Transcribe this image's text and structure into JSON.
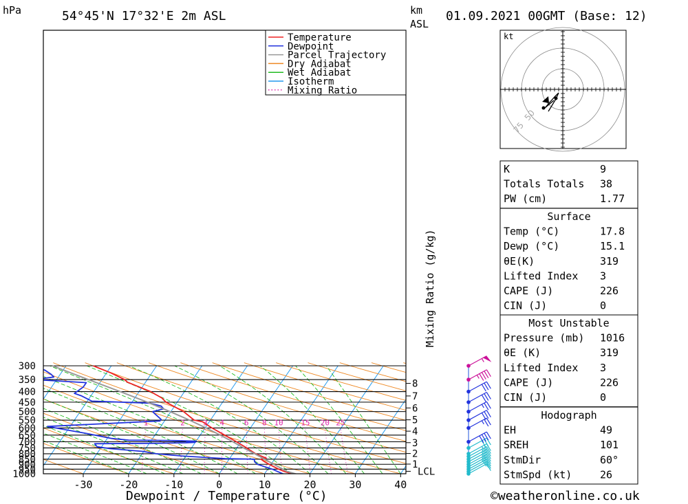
{
  "header": {
    "location": "54°45'N 17°32'E 2m ASL",
    "pressure_unit": "hPa",
    "km_unit": "km",
    "asl_label": "ASL",
    "datetime": "01.09.2021 00GMT (Base: 12)"
  },
  "footer": {
    "x_axis_title": "Dewpoint / Temperature (°C)",
    "copyright": "©weatheronline.co.uk"
  },
  "chart_data": {
    "type": "line",
    "title": "54°45'N 17°32'E 2m ASL",
    "xlabel": "Dewpoint / Temperature (°C)",
    "ylabel": "hPa",
    "mixing_ratio_label": "Mixing Ratio (g/kg)",
    "xlim": [
      -40,
      40
    ],
    "x_ticks": [
      -30,
      -20,
      -10,
      0,
      10,
      20,
      30,
      40
    ],
    "pressure_levels": [
      300,
      350,
      400,
      450,
      500,
      550,
      600,
      650,
      700,
      750,
      800,
      850,
      900,
      950,
      1000
    ],
    "km_ticks": [
      {
        "label": "8",
        "p": 365
      },
      {
        "label": "7",
        "p": 420
      },
      {
        "label": "6",
        "p": 480
      },
      {
        "label": "5",
        "p": 548
      },
      {
        "label": "4",
        "p": 622
      },
      {
        "label": "3",
        "p": 707
      },
      {
        "label": "2",
        "p": 798
      },
      {
        "label": "1",
        "p": 898
      },
      {
        "label": "LCL",
        "p": 973
      }
    ],
    "mixing_ratio_values": [
      "1",
      "2",
      "3",
      "4",
      "6",
      "8",
      "10",
      "15",
      "20",
      "25"
    ],
    "legend": {
      "position": "top-center",
      "entries": [
        {
          "name": "Temperature",
          "color": "#ee2222",
          "style": "solid"
        },
        {
          "name": "Dewpoint",
          "color": "#2233dd",
          "style": "solid"
        },
        {
          "name": "Parcel Trajectory",
          "color": "#999999",
          "style": "solid"
        },
        {
          "name": "Dry Adiabat",
          "color": "#ee8822",
          "style": "solid"
        },
        {
          "name": "Wet Adiabat",
          "color": "#22bb22",
          "style": "solid"
        },
        {
          "name": "Isotherm",
          "color": "#2299ee",
          "style": "solid"
        },
        {
          "name": "Mixing Ratio",
          "color": "#dd22aa",
          "style": "dotted"
        }
      ]
    },
    "series": [
      {
        "name": "Temperature",
        "color": "#ee2222",
        "points": [
          {
            "p": 1013,
            "t": 17.8
          },
          {
            "p": 1000,
            "t": 16.0
          },
          {
            "p": 975,
            "t": 14.0
          },
          {
            "p": 950,
            "t": 12.4
          },
          {
            "p": 925,
            "t": 11.0
          },
          {
            "p": 900,
            "t": 9.6
          },
          {
            "p": 875,
            "t": 8.2
          },
          {
            "p": 850,
            "t": 7.0
          },
          {
            "p": 840,
            "t": 8.0
          },
          {
            "p": 800,
            "t": 5.0
          },
          {
            "p": 750,
            "t": 2.2
          },
          {
            "p": 700,
            "t": -1.0
          },
          {
            "p": 650,
            "t": -4.6
          },
          {
            "p": 600,
            "t": -8.5
          },
          {
            "p": 560,
            "t": -11.5
          },
          {
            "p": 550,
            "t": -13.6
          },
          {
            "p": 500,
            "t": -17.2
          },
          {
            "p": 450,
            "t": -22.5
          },
          {
            "p": 430,
            "t": -24.0
          },
          {
            "p": 400,
            "t": -27.5
          },
          {
            "p": 360,
            "t": -34.0
          },
          {
            "p": 350,
            "t": -35.0
          },
          {
            "p": 325,
            "t": -39.0
          },
          {
            "p": 300,
            "t": -44.0
          }
        ]
      },
      {
        "name": "Dewpoint",
        "color": "#2233dd",
        "points": [
          {
            "p": 1013,
            "t": 15.1
          },
          {
            "p": 1000,
            "t": 14.0
          },
          {
            "p": 975,
            "t": 12.5
          },
          {
            "p": 950,
            "t": 11.0
          },
          {
            "p": 925,
            "t": 9.0
          },
          {
            "p": 900,
            "t": 7.0
          },
          {
            "p": 875,
            "t": 6.0
          },
          {
            "p": 850,
            "t": 5.5
          },
          {
            "p": 845,
            "t": -1.0
          },
          {
            "p": 820,
            "t": -11.0
          },
          {
            "p": 800,
            "t": -17.0
          },
          {
            "p": 780,
            "t": -20.0
          },
          {
            "p": 755,
            "t": -28.0
          },
          {
            "p": 740,
            "t": -31.0
          },
          {
            "p": 715,
            "t": -32.0
          },
          {
            "p": 712,
            "t": -18.0
          },
          {
            "p": 708,
            "t": -12.0
          },
          {
            "p": 705,
            "t": -10.0
          },
          {
            "p": 700,
            "t": -12.0
          },
          {
            "p": 695,
            "t": -10.0
          },
          {
            "p": 690,
            "t": -16.0
          },
          {
            "p": 688,
            "t": -25.0
          },
          {
            "p": 675,
            "t": -29.0
          },
          {
            "p": 640,
            "t": -35.0
          },
          {
            "p": 590,
            "t": -45.0
          },
          {
            "p": 555,
            "t": -21.0
          },
          {
            "p": 545,
            "t": -21.0
          },
          {
            "p": 508,
            "t": -23.5
          },
          {
            "p": 500,
            "t": -24.0
          },
          {
            "p": 485,
            "t": -22.0
          },
          {
            "p": 470,
            "t": -23.0
          },
          {
            "p": 455,
            "t": -26.0
          },
          {
            "p": 445,
            "t": -39.0
          },
          {
            "p": 420,
            "t": -42.0
          },
          {
            "p": 408,
            "t": -44.0
          },
          {
            "p": 380,
            "t": -43.0
          },
          {
            "p": 362,
            "t": -43.0
          },
          {
            "p": 350,
            "t": -55.0
          },
          {
            "p": 340,
            "t": -51.0
          },
          {
            "p": 330,
            "t": -52.0
          },
          {
            "p": 315,
            "t": -54.0
          },
          {
            "p": 300,
            "t": -58.0
          }
        ]
      },
      {
        "name": "Parcel Trajectory",
        "color": "#999999",
        "points": [
          {
            "p": 1013,
            "t": 17.8
          },
          {
            "p": 973,
            "t": 14.5
          },
          {
            "p": 950,
            "t": 13.3
          },
          {
            "p": 900,
            "t": 10.6
          },
          {
            "p": 850,
            "t": 7.8
          },
          {
            "p": 800,
            "t": 4.8
          },
          {
            "p": 750,
            "t": 1.5
          },
          {
            "p": 700,
            "t": -1.8
          },
          {
            "p": 650,
            "t": -5.6
          },
          {
            "p": 600,
            "t": -9.8
          },
          {
            "p": 550,
            "t": -14.6
          },
          {
            "p": 500,
            "t": -20.2
          },
          {
            "p": 450,
            "t": -26.6
          },
          {
            "p": 400,
            "t": -34.2
          },
          {
            "p": 350,
            "t": -43.0
          },
          {
            "p": 300,
            "t": -53.0
          }
        ]
      }
    ]
  },
  "hodograph": {
    "unit": "kt",
    "ring_labels": [
      "50",
      "75"
    ]
  },
  "wind_barbs": {
    "levels": [
      1000,
      975,
      950,
      925,
      900,
      875,
      850,
      825,
      800,
      750,
      700,
      600,
      550,
      500,
      450,
      400,
      350,
      300
    ],
    "speeds_kt": [
      10,
      15,
      20,
      25,
      25,
      25,
      30,
      25,
      25,
      30,
      40,
      25,
      30,
      25,
      30,
      30,
      45,
      55
    ]
  },
  "stability": {
    "rows": [
      {
        "label": "K",
        "value": "9"
      },
      {
        "label": "Totals Totals",
        "value": "38"
      },
      {
        "label": "PW (cm)",
        "value": "1.77"
      }
    ]
  },
  "surface": {
    "heading": "Surface",
    "rows": [
      {
        "label": "Temp (°C)",
        "value": "17.8"
      },
      {
        "label": "Dewp (°C)",
        "value": "15.1"
      },
      {
        "label": "θE(K)",
        "value": "319"
      },
      {
        "label": "Lifted Index",
        "value": "3"
      },
      {
        "label": "CAPE (J)",
        "value": "226"
      },
      {
        "label": "CIN (J)",
        "value": "0"
      }
    ]
  },
  "most_unstable": {
    "heading": "Most Unstable",
    "rows": [
      {
        "label": "Pressure (mb)",
        "value": "1016"
      },
      {
        "label": "θE (K)",
        "value": "319"
      },
      {
        "label": "Lifted Index",
        "value": "3"
      },
      {
        "label": "CAPE (J)",
        "value": "226"
      },
      {
        "label": "CIN (J)",
        "value": "0"
      }
    ]
  },
  "hodograph_table": {
    "heading": "Hodograph",
    "rows": [
      {
        "label": "EH",
        "value": "49"
      },
      {
        "label": "SREH",
        "value": "101"
      },
      {
        "label": "StmDir",
        "value": "60°"
      },
      {
        "label": "StmSpd (kt)",
        "value": "26"
      }
    ]
  }
}
